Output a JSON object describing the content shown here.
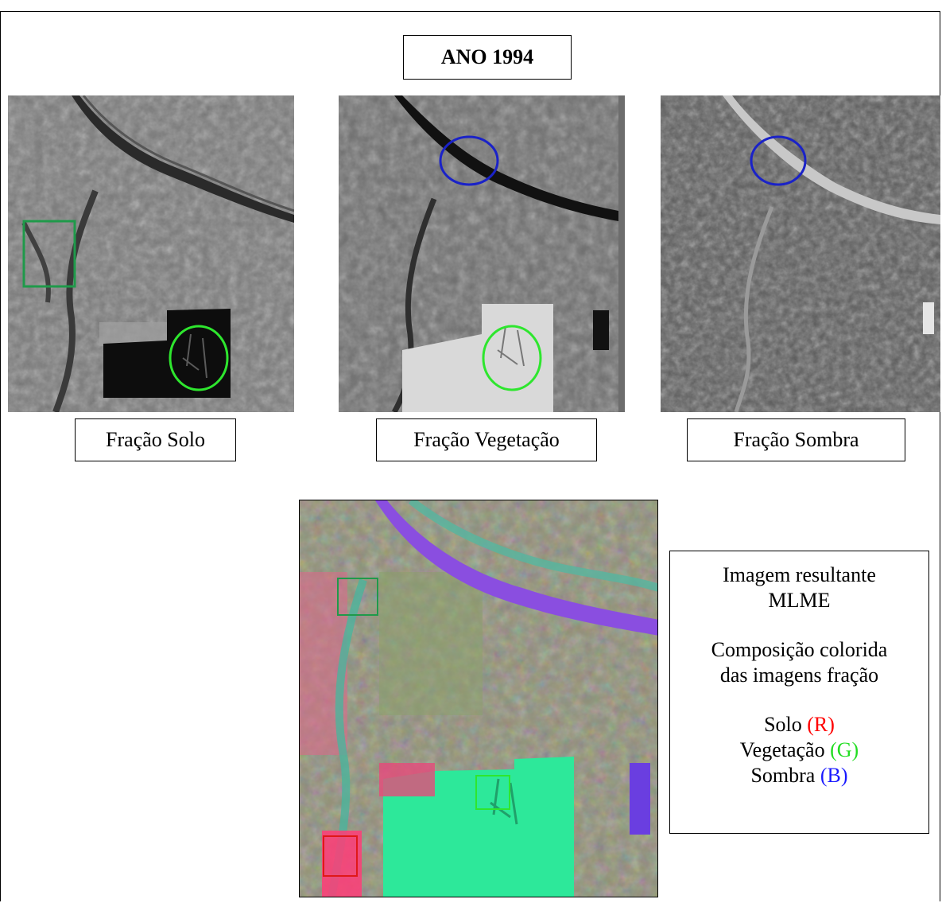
{
  "title": "ANO 1994",
  "panels": [
    {
      "label": "Fração Solo"
    },
    {
      "label": "Fração Vegetação"
    },
    {
      "label": "Fração Sombra"
    }
  ],
  "legend": {
    "line1": "Imagem resultante",
    "line2": "MLME",
    "line3": "Composição colorida",
    "line4": "das imagens fração",
    "solo": "Solo",
    "solo_code": "(R)",
    "vegetacao": "Vegetação",
    "vegetacao_code": "(G)",
    "sombra": "Sombra",
    "sombra_code": "(B)"
  },
  "colors": {
    "red": "#ff0000",
    "green": "#22dd22",
    "blue": "#1a1aff",
    "marker_green": "#2ee62e",
    "marker_darkgreen": "#1f9a4a",
    "marker_blue": "#1a22c8",
    "marker_red": "#e01818"
  }
}
